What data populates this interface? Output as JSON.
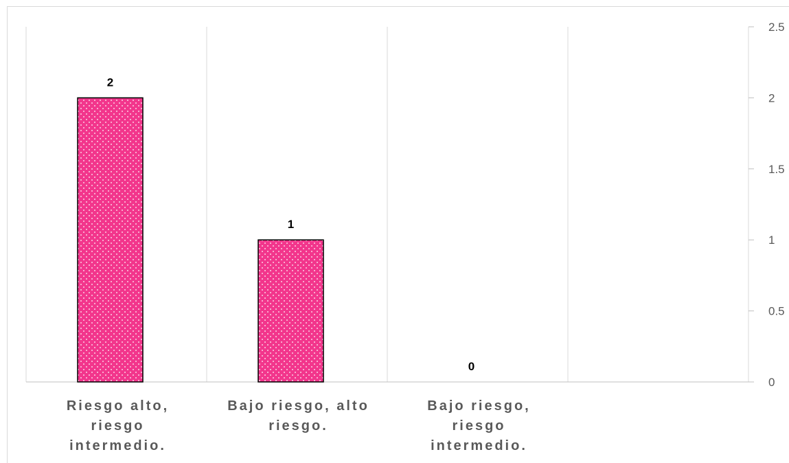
{
  "chart_data": {
    "type": "bar",
    "categories": [
      "Riesgo alto, riesgo intermedio.",
      "Bajo riesgo, alto riesgo.",
      "Bajo riesgo, riesgo intermedio.",
      ""
    ],
    "category_lines": [
      [
        "Riesgo alto,",
        "riesgo",
        "intermedio."
      ],
      [
        "Bajo riesgo, alto",
        "riesgo."
      ],
      [
        "Bajo riesgo,",
        "riesgo",
        "intermedio."
      ],
      []
    ],
    "values": [
      2,
      1,
      0,
      null
    ],
    "data_labels": [
      "2",
      "1",
      "0",
      ""
    ],
    "ylim": [
      0,
      2.5
    ],
    "yticks": [
      "0",
      "0.5",
      "1",
      "1.5",
      "2",
      "2.5"
    ],
    "y_axis_position": "right",
    "grid": "vertical",
    "legend": "none",
    "title": "",
    "xlabel": "",
    "ylabel": "",
    "colors": {
      "bar_fill": "#f2368c",
      "bar_dots": "#ffffff",
      "bar_outline": "#000000",
      "gridline": "#d9d9d9",
      "tick_text": "#595959"
    }
  }
}
